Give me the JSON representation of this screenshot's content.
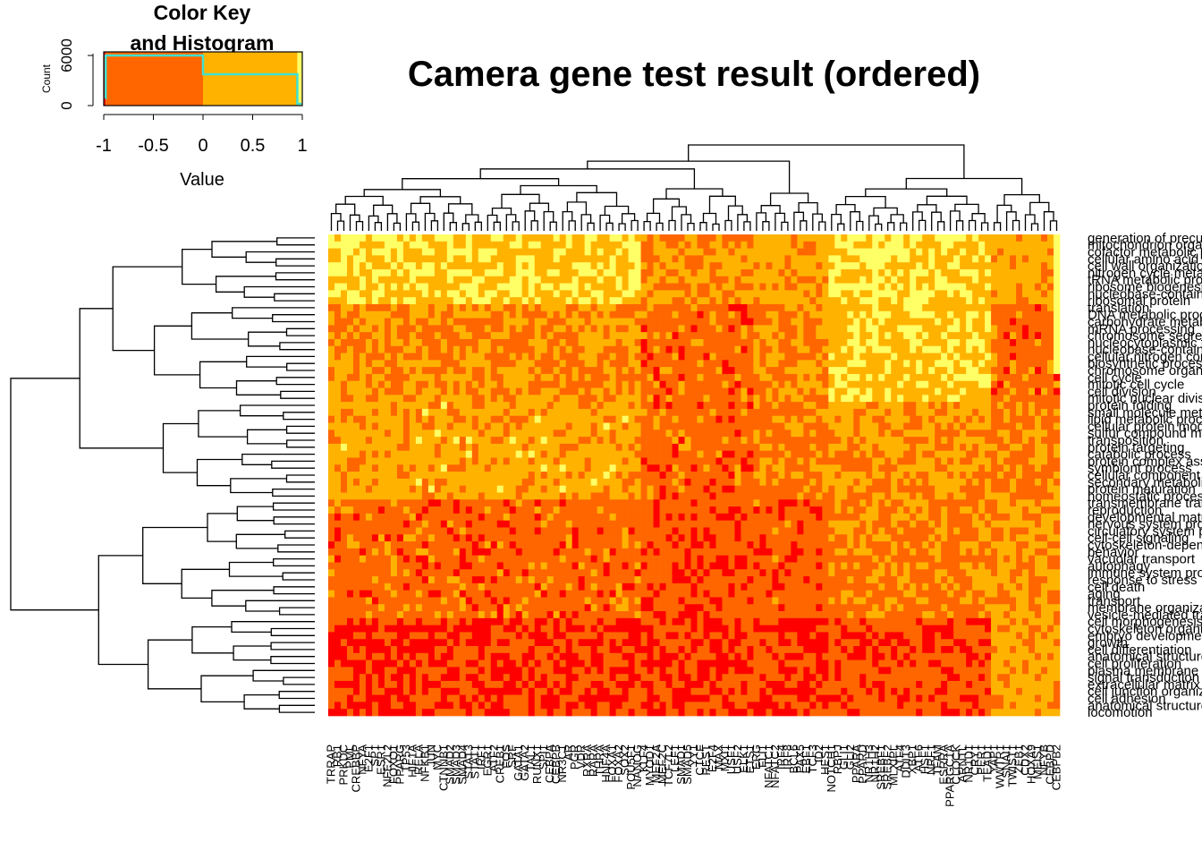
{
  "chart_data": {
    "type": "heatmap",
    "title": "Camera gene test result (ordered)",
    "color_key": {
      "title_line1": "Color Key",
      "title_line2": "and Histogram",
      "xlabel": "Value",
      "ylabel": "Count",
      "x_ticks": [
        "-1",
        "-0.5",
        "0",
        "0.5",
        "1"
      ],
      "y_ticks": [
        "0",
        "6000"
      ],
      "colors": [
        "#FF0000",
        "#FF6600",
        "#FFB300",
        "#FFFF66"
      ],
      "histogram_color": "#40E0D0"
    },
    "row_labels": [
      "generation of precursor metabolites",
      "mitochondrion organization",
      "cofactor metabolic process",
      "cellular amino acid metabolic process",
      "cell wall organization",
      "nitrogen cycle metabolic process",
      "tRNA metabolic process",
      "ribosome biogenesis",
      "nucleobase-containing compound",
      "ribosomal protein",
      "translation",
      "DNA metabolic process",
      "carbohydrate metabolic process",
      "mRNA processing",
      "chromosome segregation",
      "nucleocytoplasmic transport",
      "nucleobase-containing",
      "cellular nitrogen compound",
      "biosynthetic process",
      "chromosome organization",
      "cell cycle",
      "mitotic cell cycle",
      "cell division",
      "mitotic nuclear division",
      "protein folding",
      "small molecule metabolic process",
      "lipid metabolic process",
      "cellular protein modification",
      "sulfur compound metabolic process",
      "transposition",
      "protein targeting",
      "catabolic process",
      "protein complex assembly",
      "symbiont process",
      "cellular component assembly",
      "secondary metabolic process",
      "protein maturation",
      "homeostatic process",
      "transmembrane transport",
      "reproduction",
      "developmental maturation",
      "nervous system process",
      "circulatory system process",
      "cell-cell signaling",
      "cytoskeleton-dependent",
      "behavior",
      "vacuolar transport",
      "autophagy",
      "immune system process",
      "response to stress",
      "cell death",
      "aging",
      "transport",
      "membrane organization",
      "vesicle-mediated transport",
      "cell morphogenesis",
      "cytoskeleton organization",
      "embryo development",
      "growth",
      "cell differentiation",
      "anatomical structure development",
      "cell proliferation",
      "plasma membrane organization",
      "signal transduction",
      "extracellular matrix organization",
      "cell junction organization",
      "cell adhesion",
      "anatomical structure formation",
      "locomotion"
    ],
    "col_labels": [
      "TRRAP",
      "RB1",
      "PRKDC",
      "PML",
      "CREBBP",
      "NFYA",
      "E2F1",
      "SP1",
      "ESR1",
      "NFE2L2",
      "FOXO1",
      "PPARG",
      "TP53",
      "HIF1A",
      "RELA",
      "NFKB1",
      "JUN",
      "MYC",
      "CTNNB1",
      "SMAD2",
      "SMAD3",
      "SMAD4",
      "STAT3",
      "STAT1",
      "IRF1",
      "EGR1",
      "ATF2",
      "CREB1",
      "FOS",
      "SRF",
      "GATA1",
      "GATA2",
      "TAL1",
      "RUNX1",
      "SPI1",
      "CEBPA",
      "CEBPB",
      "NR3C1",
      "AR",
      "PGR",
      "VDR",
      "RXRA",
      "RARA",
      "THRA",
      "HNF4A",
      "FOXA1",
      "FOXA2",
      "SOX2",
      "POU5F1",
      "NANOG",
      "KLF4",
      "MYOD1",
      "MEF2A",
      "MEF2C",
      "TCF7L2",
      "LEF1",
      "SMAD1",
      "SMAD5",
      "YY1",
      "CTCF",
      "REST",
      "E2F4",
      "MAX",
      "MXI1",
      "USF1",
      "USF2",
      "ELK1",
      "ETS1",
      "ERG",
      "FLI1",
      "NFATC1",
      "NFATC2",
      "IRF4",
      "IRF8",
      "BCL6",
      "PAX5",
      "EBF1",
      "TCF3",
      "ID2",
      "HES1",
      "NOTCH1",
      "RBPJ",
      "GLI1",
      "GLI2",
      "PPARA",
      "PPARD",
      "NR1H3",
      "NR1H2",
      "SREBF1",
      "SREBF2",
      "MLXIPL",
      "ATF4",
      "DDIT3",
      "XBP1",
      "ATF6",
      "HSF1",
      "NRF1",
      "TFAM",
      "ESRRA",
      "PPARGC1A",
      "CLOCK",
      "ARNTL",
      "NR1D1",
      "CRY1",
      "PER1",
      "TEAD1",
      "YAP1",
      "WWTR1",
      "SNAI1",
      "TWIST1",
      "ZEB1",
      "CDX2",
      "HOXA9",
      "MEIS1",
      "NFYB",
      "CEBPD",
      "CEBPB2"
    ],
    "n_rows": 69,
    "n_cols": 117,
    "value_range": [
      -1,
      1
    ]
  }
}
